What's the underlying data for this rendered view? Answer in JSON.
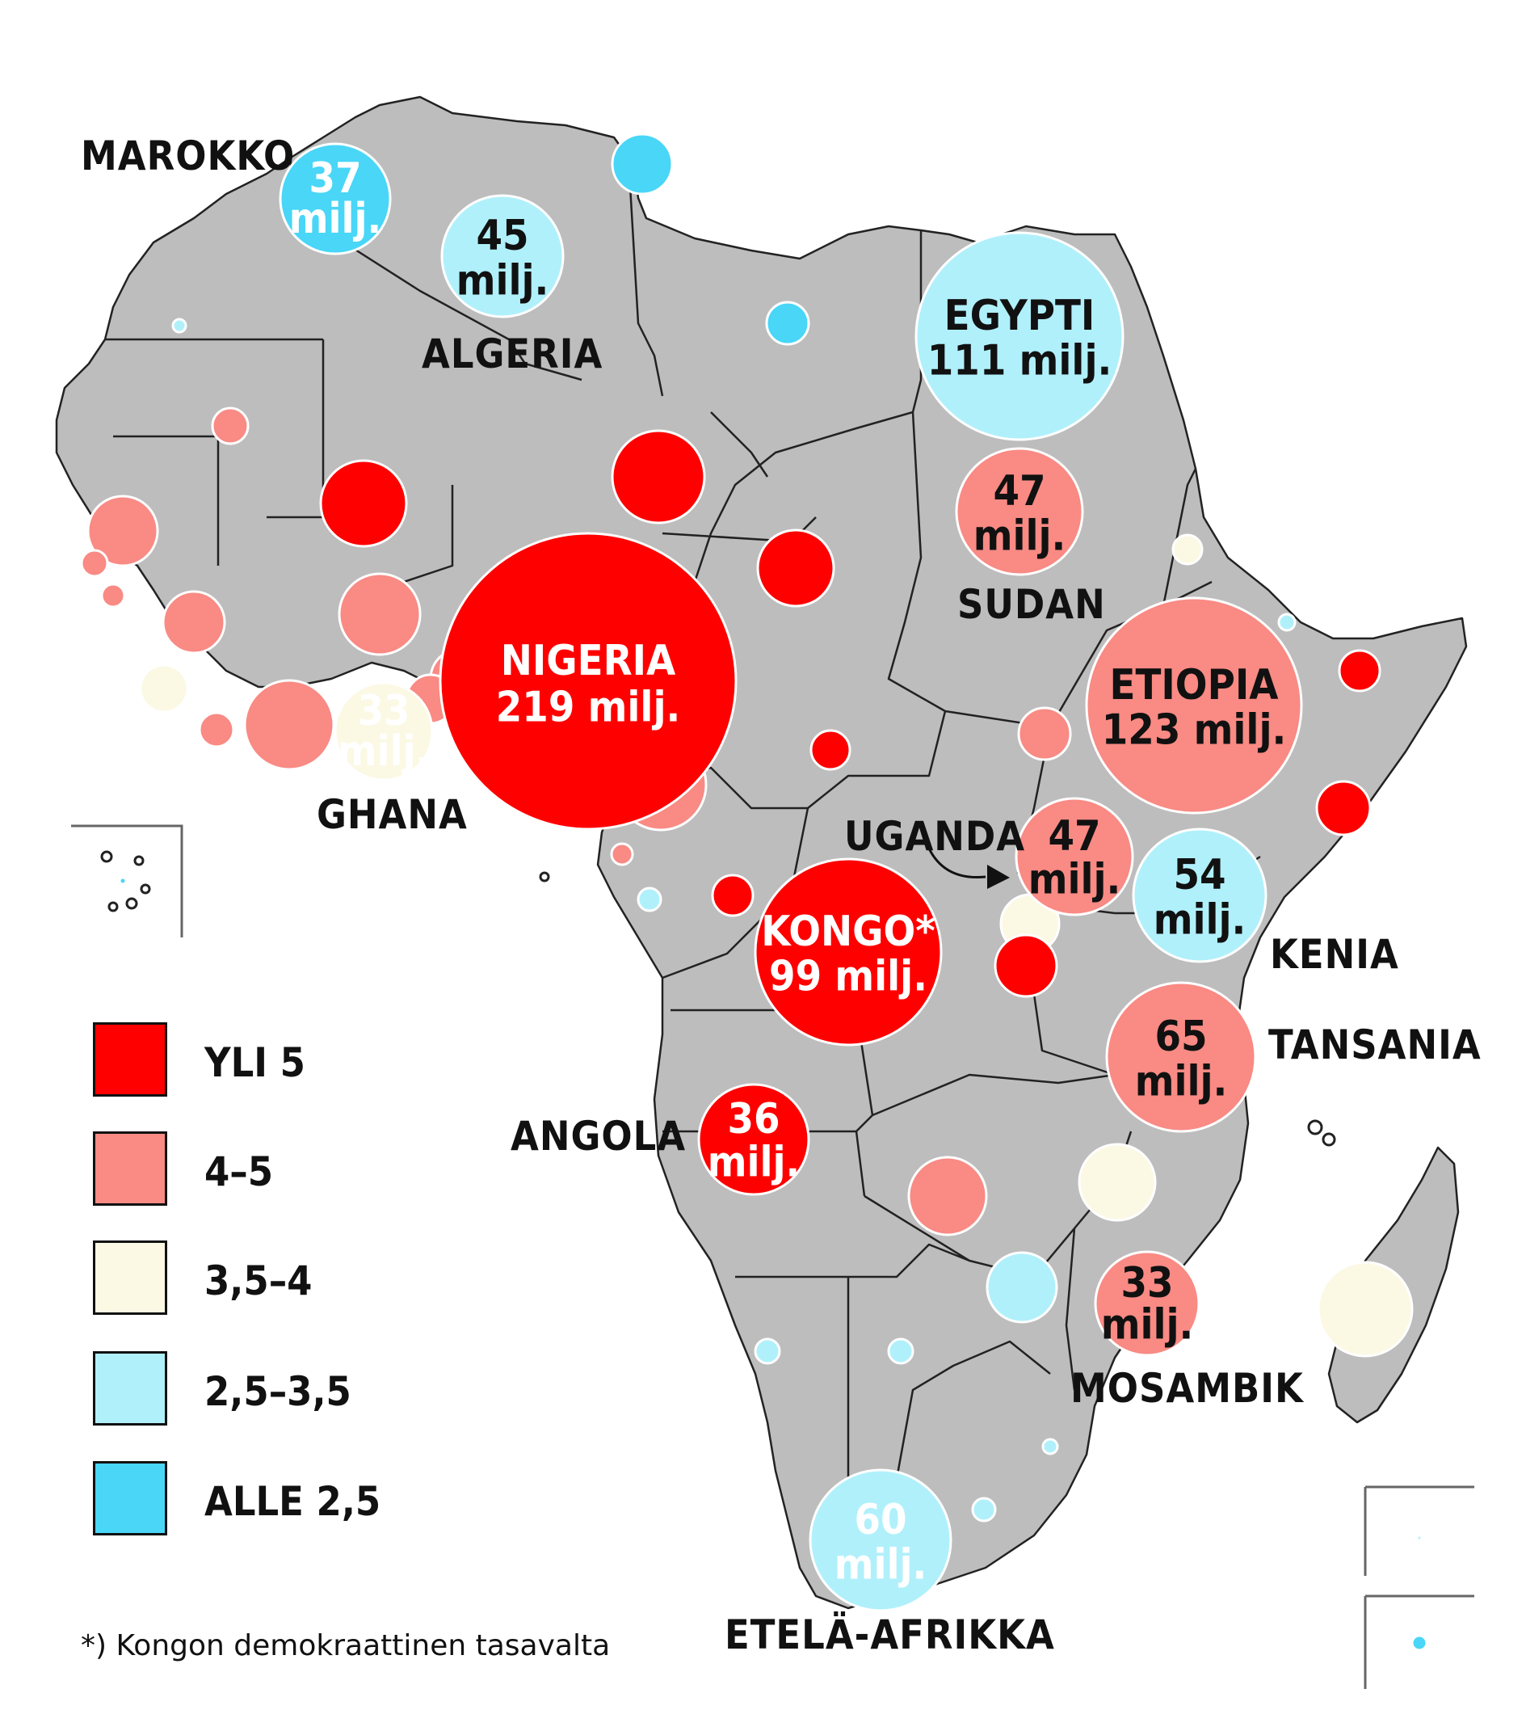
{
  "colors": {
    "yli5": "#ff0000",
    "v4_5": "#f98a84",
    "v35_4": "#fbf8e4",
    "v25_35": "#b0f0fb",
    "alle25": "#49d6f7",
    "land": "#bdbdbd"
  },
  "legend": [
    {
      "label": "YLI 5",
      "color_key": "yli5"
    },
    {
      "label": "4–5",
      "color_key": "v4_5"
    },
    {
      "label": "3,5–4",
      "color_key": "v35_4"
    },
    {
      "label": "2,5–3,5",
      "color_key": "v25_35"
    },
    {
      "label": "ALLE 2,5",
      "color_key": "alle25"
    }
  ],
  "country_labels": {
    "marokko": "MAROKKO",
    "algeria": "ALGERIA",
    "sudan": "SUDAN",
    "ghana": "GHANA",
    "uganda": "UGANDA",
    "kenia": "KENIA",
    "tansania": "TANSANIA",
    "angola": "ANGOLA",
    "mosambik": "MOSAMBIK",
    "etela_afrikka": "ETELÄ-AFRIKKA"
  },
  "bubbles": {
    "marokko": {
      "num": "37",
      "unit": "milj."
    },
    "algeria": {
      "num": "45",
      "unit": "milj."
    },
    "egypti": {
      "num": "EGYPTI",
      "unit": "111 milj."
    },
    "sudan": {
      "num": "47",
      "unit": "milj."
    },
    "nigeria": {
      "num": "NIGERIA",
      "unit": "219 milj."
    },
    "ghana": {
      "num": "33",
      "unit": "milj."
    },
    "etiopia": {
      "num": "ETIOPIA",
      "unit": "123 milj."
    },
    "uganda": {
      "num": "47",
      "unit": "milj."
    },
    "kenia": {
      "num": "54",
      "unit": "milj."
    },
    "kongo": {
      "num": "KONGO*",
      "unit": "99 milj."
    },
    "tansania": {
      "num": "65",
      "unit": "milj."
    },
    "angola": {
      "num": "36",
      "unit": "milj."
    },
    "mosambik": {
      "num": "33",
      "unit": "milj."
    },
    "etela_afrikka": {
      "num": "60",
      "unit": "milj."
    }
  },
  "footnote": "*) Kongon demokraattinen tasavalta"
}
